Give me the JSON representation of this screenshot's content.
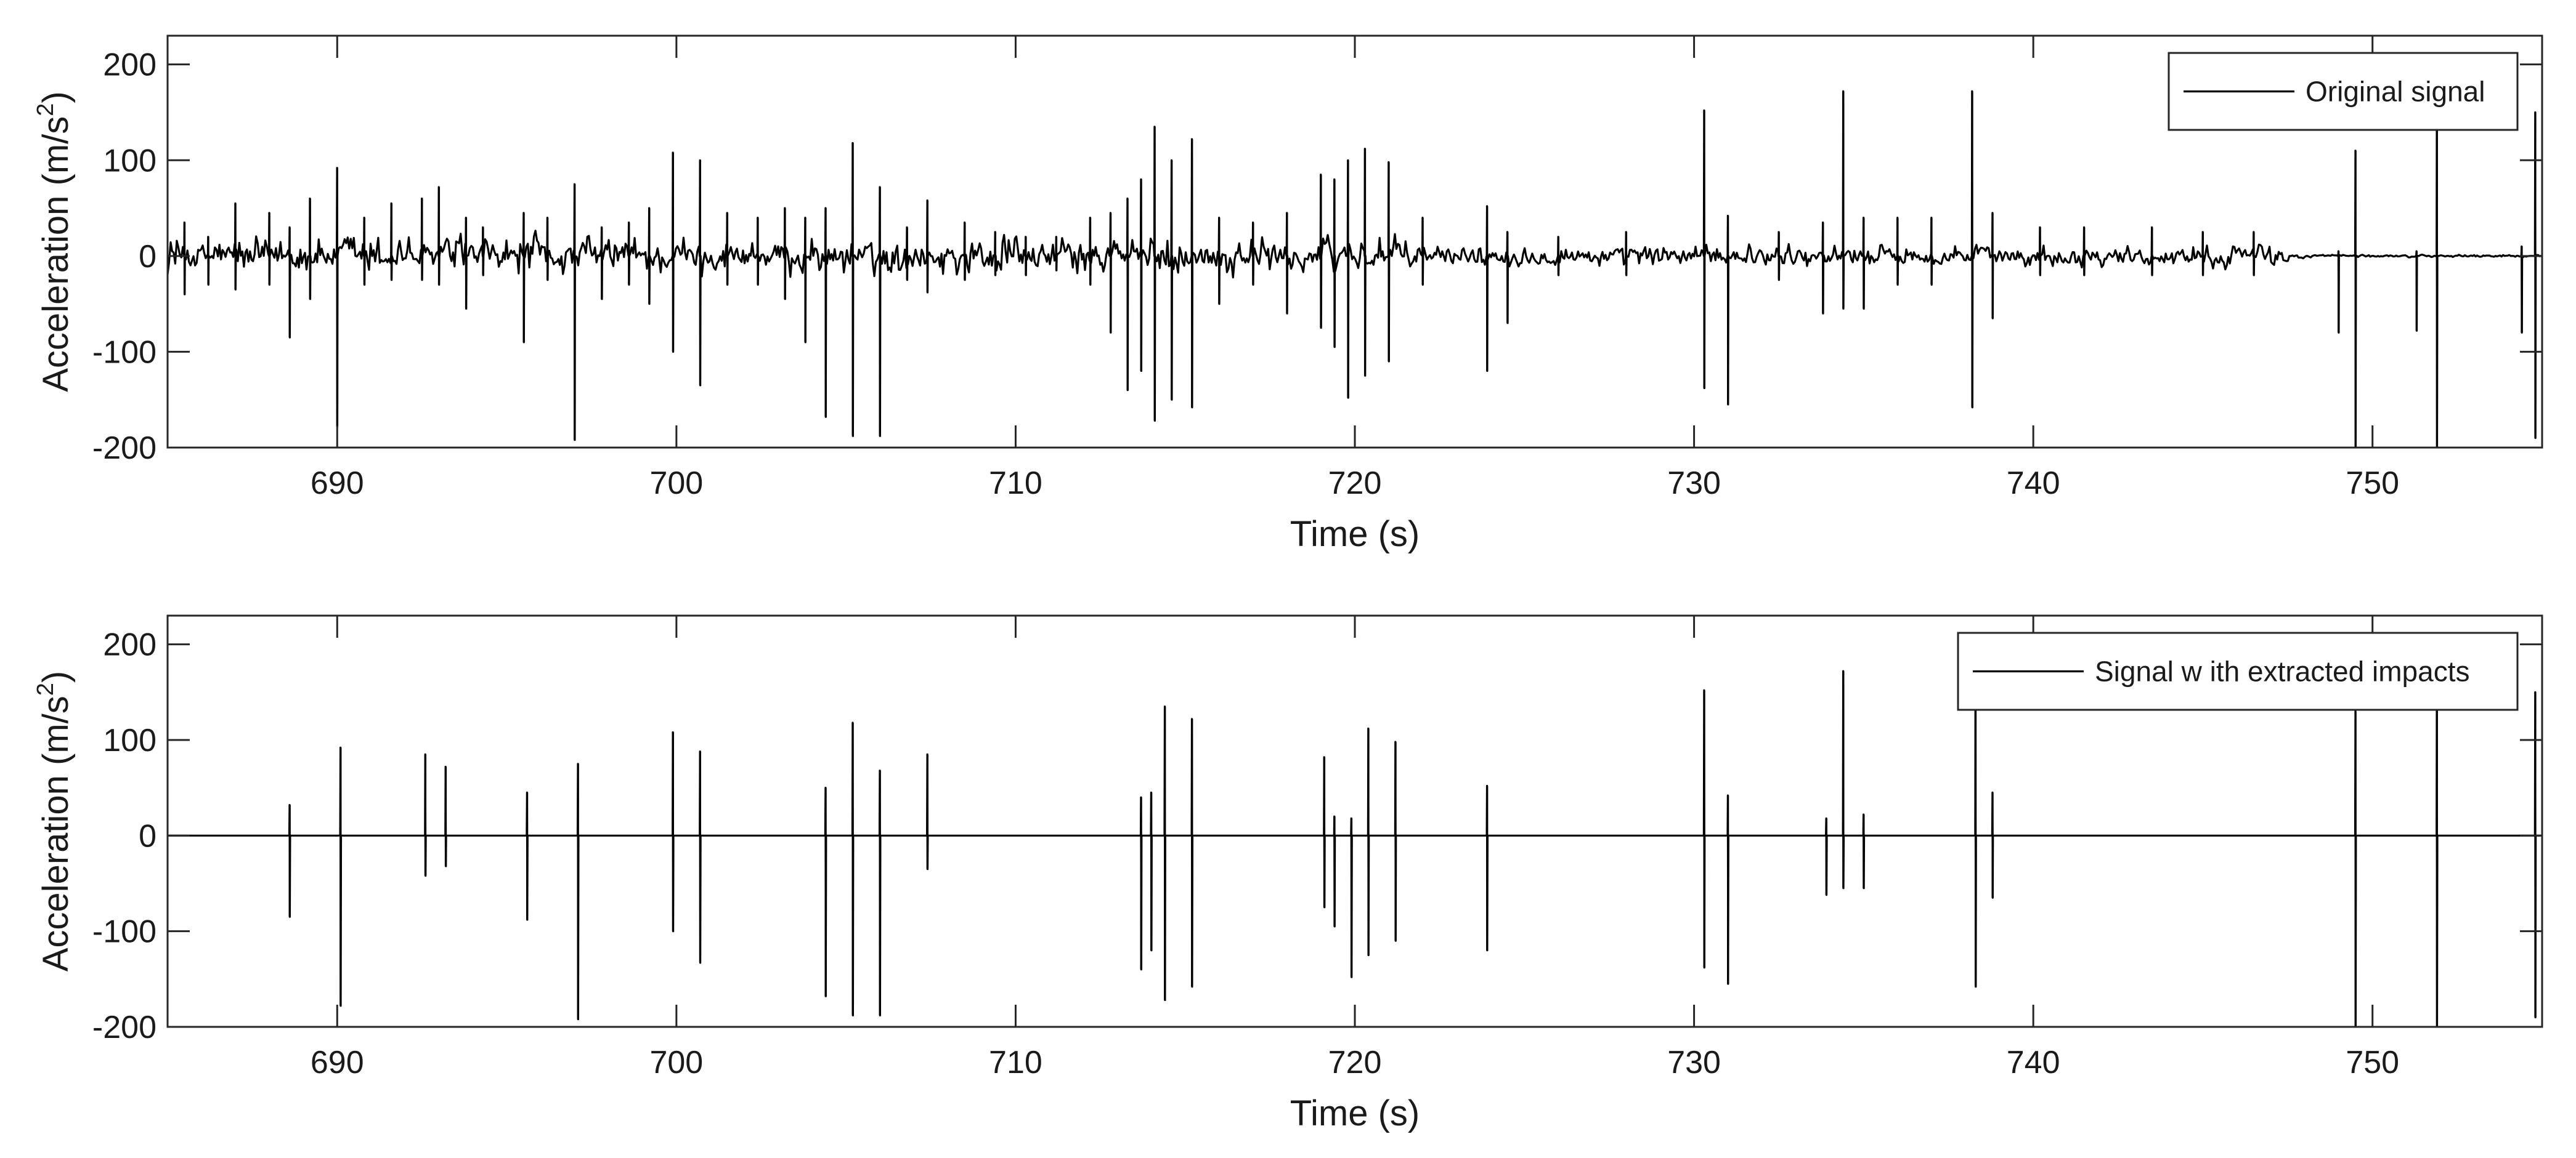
{
  "chart_data": [
    {
      "type": "line",
      "xlabel": "Time (s)",
      "ylabel_main": "Acceleration (m/s",
      "ylabel_sup": "2",
      "ylabel_tail": ")",
      "xlim": [
        685,
        755
      ],
      "ylim": [
        -200,
        230
      ],
      "xticks": [
        690,
        700,
        710,
        720,
        730,
        740,
        750
      ],
      "xtick_labels": [
        "690",
        "700",
        "710",
        "720",
        "730",
        "740",
        "750"
      ],
      "yticks": [
        -200,
        -100,
        0,
        100,
        200
      ],
      "ytick_labels": [
        "-200",
        "-100",
        "0",
        "100",
        "200"
      ],
      "legend": {
        "placement": "top-right",
        "entries": [
          "Original signal"
        ]
      },
      "grid": false,
      "series": [
        {
          "name": "Original signal",
          "color": "#000000",
          "noise_segments": [
            [
              685,
              722,
              22
            ],
            [
              722,
              747.5,
              13
            ],
            [
              747.5,
              748,
              6
            ],
            [
              748,
              755,
              1.5
            ]
          ],
          "impulses": [
            [
              685.5,
              35,
              -40
            ],
            [
              686.2,
              20,
              -30
            ],
            [
              687,
              55,
              -35
            ],
            [
              688,
              45,
              -30
            ],
            [
              688.6,
              30,
              -85
            ],
            [
              689.2,
              60,
              -45
            ],
            [
              690,
              92,
              -178
            ],
            [
              690.8,
              40,
              -30
            ],
            [
              691.6,
              55,
              -25
            ],
            [
              692.5,
              60,
              -25
            ],
            [
              693,
              72,
              -30
            ],
            [
              693.8,
              40,
              -55
            ],
            [
              694.3,
              30,
              -20
            ],
            [
              695.5,
              45,
              -90
            ],
            [
              696.2,
              40,
              -25
            ],
            [
              697,
              75,
              -192
            ],
            [
              697.8,
              30,
              -45
            ],
            [
              698.6,
              35,
              -30
            ],
            [
              699.2,
              50,
              -50
            ],
            [
              699.9,
              108,
              -100
            ],
            [
              700.7,
              100,
              -135
            ],
            [
              701.5,
              45,
              -30
            ],
            [
              702.4,
              40,
              -30
            ],
            [
              703.2,
              50,
              -45
            ],
            [
              703.8,
              40,
              -90
            ],
            [
              704.4,
              50,
              -168
            ],
            [
              705.2,
              118,
              -188
            ],
            [
              706,
              72,
              -188
            ],
            [
              706.8,
              30,
              -25
            ],
            [
              707.4,
              58,
              -38
            ],
            [
              708.5,
              35,
              -25
            ],
            [
              709.4,
              25,
              -20
            ],
            [
              710.3,
              20,
              -20
            ],
            [
              711.2,
              20,
              -15
            ],
            [
              712.2,
              40,
              -30
            ],
            [
              712.8,
              45,
              -80
            ],
            [
              713.3,
              60,
              -140
            ],
            [
              713.7,
              80,
              -120
            ],
            [
              714.1,
              135,
              -172
            ],
            [
              714.6,
              100,
              -150
            ],
            [
              715.2,
              122,
              -158
            ],
            [
              716,
              40,
              -50
            ],
            [
              717,
              35,
              -30
            ],
            [
              718,
              45,
              -60
            ],
            [
              719,
              85,
              -75
            ],
            [
              719.4,
              80,
              -95
            ],
            [
              719.8,
              100,
              -148
            ],
            [
              720.3,
              112,
              -125
            ],
            [
              721,
              98,
              -110
            ],
            [
              722,
              40,
              -30
            ],
            [
              723.9,
              52,
              -120
            ],
            [
              724.5,
              25,
              -70
            ],
            [
              726,
              20,
              -20
            ],
            [
              728,
              25,
              -20
            ],
            [
              730.3,
              152,
              -138
            ],
            [
              731,
              42,
              -155
            ],
            [
              732.5,
              25,
              -25
            ],
            [
              733.8,
              35,
              -60
            ],
            [
              734.4,
              172,
              -55
            ],
            [
              735,
              40,
              -55
            ],
            [
              736,
              40,
              -30
            ],
            [
              737,
              40,
              -30
            ],
            [
              738.2,
              172,
              -158
            ],
            [
              738.8,
              45,
              -65
            ],
            [
              740.2,
              30,
              -20
            ],
            [
              741.5,
              30,
              -20
            ],
            [
              743.5,
              30,
              -20
            ],
            [
              745,
              25,
              -20
            ],
            [
              746.5,
              25,
              -20
            ],
            [
              749,
              5,
              -80
            ],
            [
              749.5,
              110,
              -200
            ],
            [
              751.3,
              5,
              -78
            ],
            [
              751.9,
              150,
              -200
            ],
            [
              754.4,
              10,
              -80
            ],
            [
              754.8,
              150,
              -190
            ]
          ]
        }
      ]
    },
    {
      "type": "line",
      "xlabel": "Time (s)",
      "ylabel_main": "Acceleration (m/s",
      "ylabel_sup": "2",
      "ylabel_tail": ")",
      "xlim": [
        685,
        755
      ],
      "ylim": [
        -200,
        230
      ],
      "xticks": [
        690,
        700,
        710,
        720,
        730,
        740,
        750
      ],
      "xtick_labels": [
        "690",
        "700",
        "710",
        "720",
        "730",
        "740",
        "750"
      ],
      "yticks": [
        -200,
        -100,
        0,
        100,
        200
      ],
      "ytick_labels": [
        "-200",
        "-100",
        "0",
        "100",
        "200"
      ],
      "legend": {
        "placement": "top-right",
        "entries": [
          "Signal w ith extracted impacts"
        ]
      },
      "grid": false,
      "series": [
        {
          "name": "Signal w ith extracted impacts",
          "color": "#000000",
          "impulses": [
            [
              688.6,
              32,
              -85
            ],
            [
              690.1,
              92,
              -178
            ],
            [
              692.6,
              85,
              -42
            ],
            [
              693.2,
              72,
              -32
            ],
            [
              695.6,
              45,
              -88
            ],
            [
              697.1,
              75,
              -192
            ],
            [
              699.9,
              108,
              -100
            ],
            [
              700.7,
              88,
              -133
            ],
            [
              704.4,
              50,
              -168
            ],
            [
              705.2,
              118,
              -188
            ],
            [
              706,
              68,
              -188
            ],
            [
              707.4,
              85,
              -35
            ],
            [
              713.7,
              40,
              -140
            ],
            [
              714,
              45,
              -120
            ],
            [
              714.4,
              135,
              -172
            ],
            [
              715.2,
              122,
              -158
            ],
            [
              719.1,
              82,
              -75
            ],
            [
              719.4,
              20,
              -95
            ],
            [
              719.9,
              18,
              -148
            ],
            [
              720.4,
              112,
              -125
            ],
            [
              721.2,
              98,
              -110
            ],
            [
              723.9,
              52,
              -120
            ],
            [
              730.3,
              152,
              -138
            ],
            [
              731,
              42,
              -155
            ],
            [
              733.9,
              18,
              -62
            ],
            [
              734.4,
              172,
              -55
            ],
            [
              735,
              22,
              -55
            ],
            [
              738.3,
              172,
              -158
            ],
            [
              738.8,
              45,
              -65
            ],
            [
              749.5,
              130,
              -200
            ],
            [
              751.9,
              150,
              -200
            ],
            [
              754.8,
              150,
              -190
            ]
          ]
        }
      ]
    }
  ]
}
